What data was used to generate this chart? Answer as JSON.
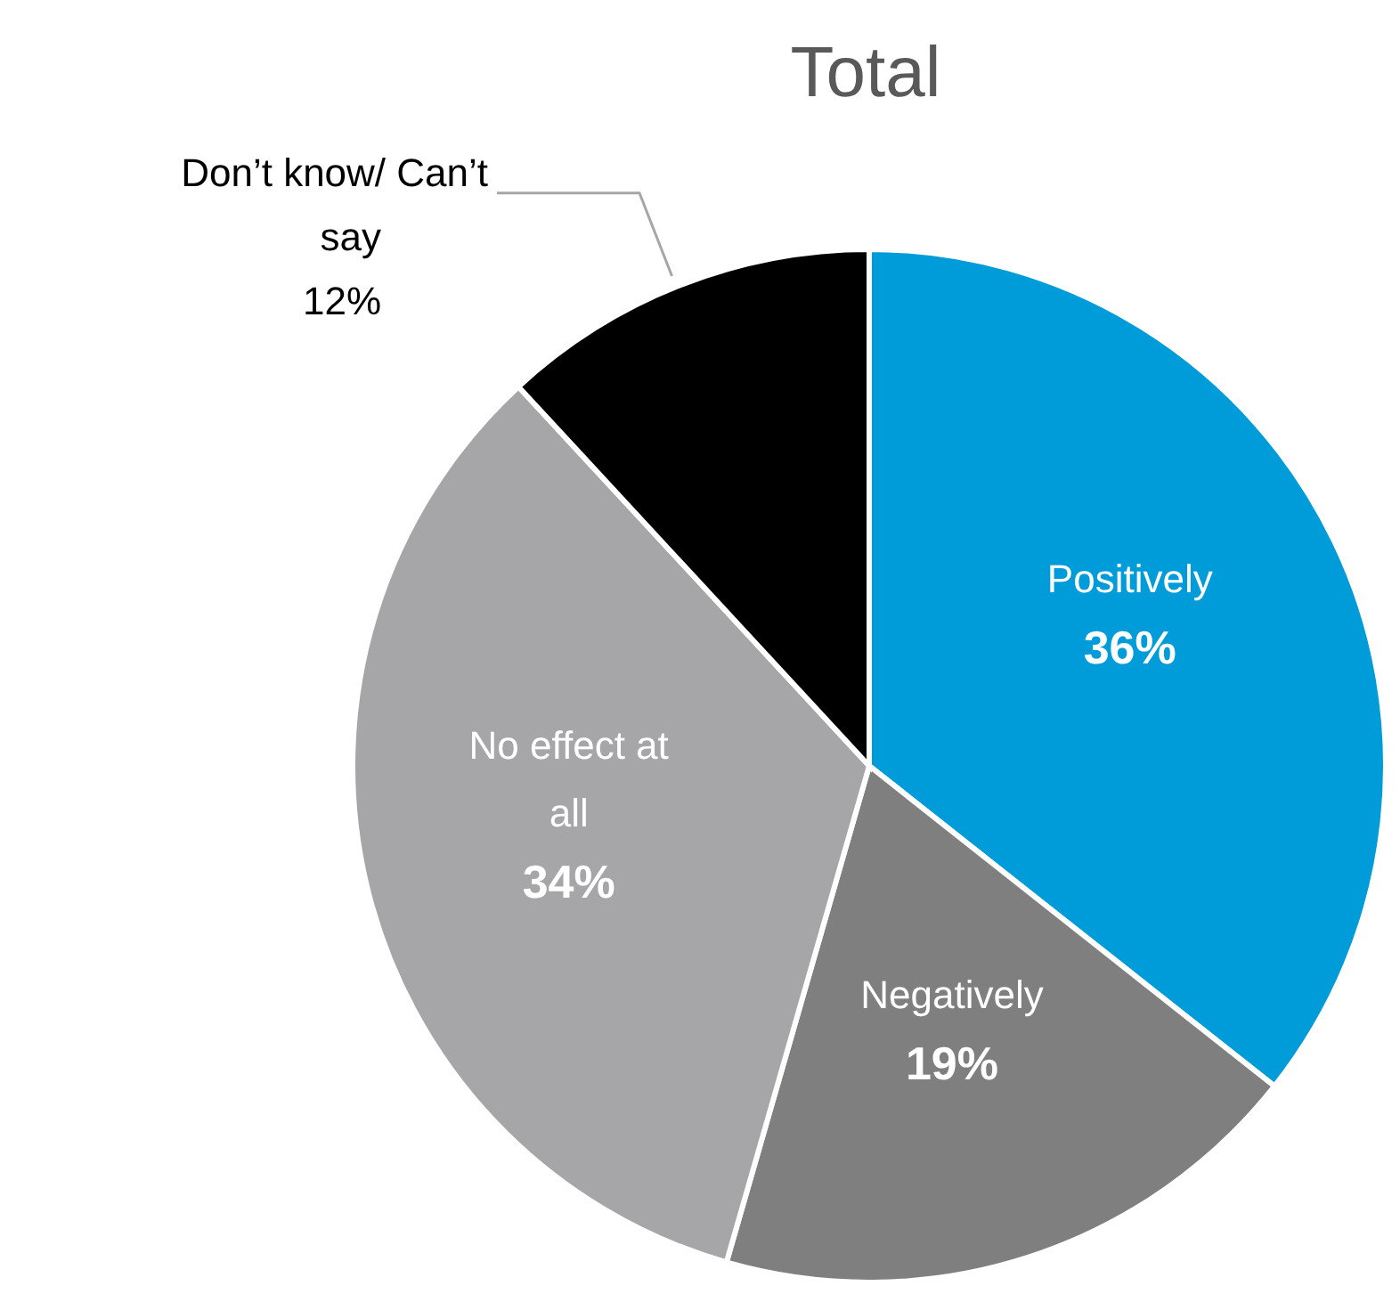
{
  "chart_data": {
    "type": "pie",
    "title": "Total",
    "categories": [
      "Positively",
      "Negatively",
      "No effect at all",
      "Don’t know/ Can’t say"
    ],
    "values": [
      36,
      19,
      34,
      12
    ],
    "colors": [
      "#009cda",
      "#7f7f7f",
      "#a6a6a9",
      "#000000"
    ],
    "value_labels": [
      "36%",
      "19%",
      "34%",
      "12%"
    ],
    "legend": false
  }
}
